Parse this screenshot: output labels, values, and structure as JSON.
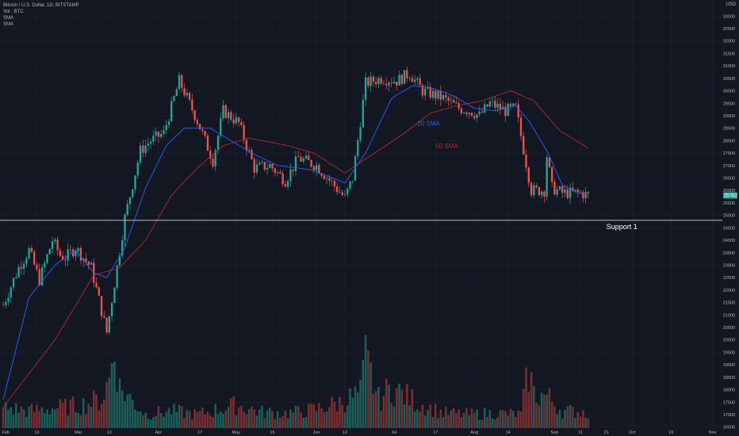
{
  "header": {
    "symbol_line": "Bitcoin / U.S. Dollar, 1D, BITSTAMP",
    "vol_line": "Vol · BTC",
    "sma1": "SMA",
    "sma2": "SMA",
    "currency": "USD"
  },
  "colors": {
    "background": "#131722",
    "up": "#26a69a",
    "down": "#ef5350",
    "sma20": "#2962ff",
    "sma50": "#b22833",
    "support": "#d1d4dc",
    "text": "#b2b5be"
  },
  "chart_data": {
    "type": "candlestick",
    "title": "Bitcoin / U.S. Dollar, 1D, BITSTAMP",
    "ylabel": "USD",
    "ylim": [
      16300,
      33200
    ],
    "y_ticks": [
      16500,
      17000,
      17500,
      18000,
      18500,
      19000,
      19500,
      20000,
      20500,
      21000,
      21500,
      22000,
      22500,
      23000,
      23500,
      24000,
      24500,
      25000,
      25500,
      26000,
      26500,
      27000,
      27500,
      28000,
      28500,
      29000,
      29500,
      30000,
      30500,
      31000,
      31500,
      32000,
      32500,
      33000
    ],
    "x_ticks": [
      {
        "label": "Feb",
        "day": 1
      },
      {
        "label": "13",
        "day": 13
      },
      {
        "label": "Mar",
        "day": 29
      },
      {
        "label": "13",
        "day": 41
      },
      {
        "label": "Apr",
        "day": 60
      },
      {
        "label": "17",
        "day": 76
      },
      {
        "label": "May",
        "day": 90
      },
      {
        "label": "15",
        "day": 104
      },
      {
        "label": "Jun",
        "day": 121
      },
      {
        "label": "12",
        "day": 132
      },
      {
        "label": "Jul",
        "day": 151
      },
      {
        "label": "17",
        "day": 167
      },
      {
        "label": "Aug",
        "day": 182
      },
      {
        "label": "14",
        "day": 195
      },
      {
        "label": "Sep",
        "day": 213
      },
      {
        "label": "11",
        "day": 223
      },
      {
        "label": "21",
        "day": 233
      },
      {
        "label": "Oct",
        "day": 243
      },
      {
        "label": "16",
        "day": 258
      },
      {
        "label": "Nov",
        "day": 274
      }
    ],
    "last_day": 226,
    "ohlc_keyframes": [
      [
        0,
        21400
      ],
      [
        6,
        22900
      ],
      [
        10,
        23600
      ],
      [
        14,
        22400
      ],
      [
        19,
        24000
      ],
      [
        22,
        23400
      ],
      [
        24,
        23300
      ],
      [
        28,
        23700
      ],
      [
        34,
        22900
      ],
      [
        40,
        20300
      ],
      [
        47,
        24900
      ],
      [
        53,
        27600
      ],
      [
        57,
        28000
      ],
      [
        62,
        28300
      ],
      [
        68,
        30400
      ],
      [
        75,
        28800
      ],
      [
        81,
        27200
      ],
      [
        85,
        29200
      ],
      [
        91,
        28700
      ],
      [
        97,
        26900
      ],
      [
        103,
        27000
      ],
      [
        109,
        26400
      ],
      [
        114,
        27300
      ],
      [
        121,
        27000
      ],
      [
        127,
        26300
      ],
      [
        132,
        25700
      ],
      [
        135,
        26500
      ],
      [
        140,
        30300
      ],
      [
        146,
        30500
      ],
      [
        152,
        30400
      ],
      [
        157,
        30700
      ],
      [
        162,
        30000
      ],
      [
        170,
        29700
      ],
      [
        176,
        29300
      ],
      [
        180,
        29200
      ],
      [
        184,
        29000
      ],
      [
        188,
        29500
      ],
      [
        194,
        29200
      ],
      [
        198,
        29300
      ],
      [
        204,
        26000
      ],
      [
        209,
        26000
      ],
      [
        210,
        27400
      ],
      [
        212,
        26100
      ],
      [
        216,
        25900
      ],
      [
        223,
        25900
      ],
      [
        226,
        25800
      ]
    ],
    "sma20_keyframes": [
      [
        0,
        17600
      ],
      [
        10,
        21700
      ],
      [
        20,
        23000
      ],
      [
        28,
        23600
      ],
      [
        35,
        22700
      ],
      [
        40,
        22500
      ],
      [
        47,
        23700
      ],
      [
        55,
        26100
      ],
      [
        63,
        27800
      ],
      [
        70,
        28500
      ],
      [
        80,
        28500
      ],
      [
        88,
        28000
      ],
      [
        96,
        27500
      ],
      [
        106,
        27000
      ],
      [
        114,
        26900
      ],
      [
        120,
        26800
      ],
      [
        132,
        26300
      ],
      [
        140,
        27500
      ],
      [
        150,
        29700
      ],
      [
        158,
        30200
      ],
      [
        166,
        30100
      ],
      [
        174,
        29800
      ],
      [
        182,
        29300
      ],
      [
        190,
        29200
      ],
      [
        198,
        29400
      ],
      [
        203,
        28800
      ],
      [
        210,
        27600
      ],
      [
        216,
        26200
      ],
      [
        222,
        25900
      ],
      [
        226,
        25800
      ]
    ],
    "sma50_keyframes": [
      [
        0,
        17300
      ],
      [
        20,
        20000
      ],
      [
        35,
        22600
      ],
      [
        45,
        22900
      ],
      [
        55,
        24000
      ],
      [
        65,
        25800
      ],
      [
        75,
        26900
      ],
      [
        85,
        27800
      ],
      [
        95,
        28100
      ],
      [
        110,
        27800
      ],
      [
        120,
        27500
      ],
      [
        132,
        26700
      ],
      [
        142,
        27400
      ],
      [
        155,
        28300
      ],
      [
        165,
        29100
      ],
      [
        175,
        29400
      ],
      [
        185,
        29600
      ],
      [
        196,
        30000
      ],
      [
        205,
        29600
      ],
      [
        215,
        28400
      ],
      [
        226,
        27700
      ]
    ],
    "volume_keyframes": [
      [
        0,
        0.18
      ],
      [
        10,
        0.15
      ],
      [
        22,
        0.18
      ],
      [
        30,
        0.2
      ],
      [
        38,
        0.25
      ],
      [
        41,
        0.42
      ],
      [
        43,
        0.72
      ],
      [
        45,
        0.35
      ],
      [
        55,
        0.12
      ],
      [
        65,
        0.15
      ],
      [
        75,
        0.12
      ],
      [
        90,
        0.2
      ],
      [
        100,
        0.14
      ],
      [
        110,
        0.13
      ],
      [
        120,
        0.16
      ],
      [
        130,
        0.22
      ],
      [
        138,
        0.3
      ],
      [
        140,
        0.6
      ],
      [
        145,
        0.25
      ],
      [
        150,
        0.35
      ],
      [
        160,
        0.22
      ],
      [
        170,
        0.13
      ],
      [
        180,
        0.12
      ],
      [
        190,
        0.13
      ],
      [
        200,
        0.12
      ],
      [
        203,
        0.5
      ],
      [
        205,
        0.3
      ],
      [
        210,
        0.28
      ],
      [
        216,
        0.15
      ],
      [
        226,
        0.14
      ]
    ],
    "sma20_label": "20 SMA",
    "sma50_label": "50 SMA",
    "support_price": 24800,
    "support_label": "Support 1",
    "last_price": 25800,
    "last_price_label": "25762",
    "grid": true
  }
}
